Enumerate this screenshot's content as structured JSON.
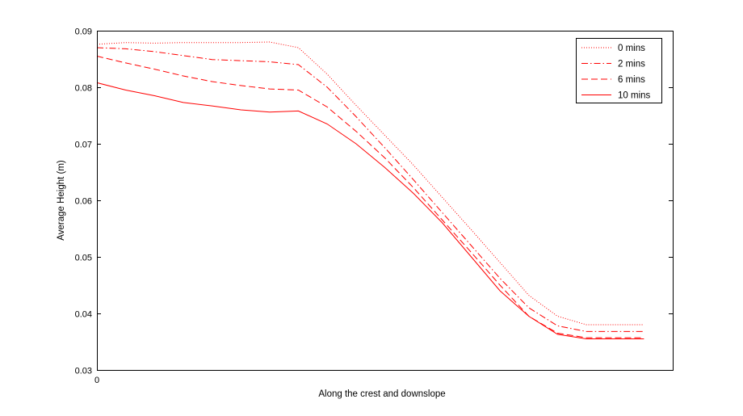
{
  "chart_data": {
    "type": "line",
    "title": "",
    "xlabel": "Along the crest and downslope",
    "ylabel": "Average Height (m)",
    "xlim": [
      0,
      1
    ],
    "ylim": [
      0.03,
      0.09
    ],
    "x_tick_labels": [
      "0"
    ],
    "y_ticks": [
      0.03,
      0.04,
      0.05,
      0.06,
      0.07,
      0.08,
      0.09
    ],
    "y_tick_labels": [
      "0.03",
      "0.04",
      "0.05",
      "0.06",
      "0.07",
      "0.08",
      "0.09"
    ],
    "grid": false,
    "legend_position": "top-right",
    "line_color": "#ff0000",
    "series": [
      {
        "name": "0 mins",
        "style": "dotted",
        "x": [
          0,
          0.05,
          0.1,
          0.15,
          0.2,
          0.25,
          0.3,
          0.35,
          0.4,
          0.45,
          0.5,
          0.55,
          0.6,
          0.65,
          0.7,
          0.75,
          0.8,
          0.85,
          0.9,
          0.95
        ],
        "y": [
          0.0876,
          0.0879,
          0.0878,
          0.0879,
          0.0879,
          0.0879,
          0.088,
          0.087,
          0.0823,
          0.0768,
          0.0715,
          0.0662,
          0.0605,
          0.0548,
          0.049,
          0.0432,
          0.0395,
          0.038,
          0.038,
          0.038
        ]
      },
      {
        "name": "2 mins",
        "style": "dashdot",
        "x": [
          0,
          0.05,
          0.1,
          0.15,
          0.2,
          0.25,
          0.3,
          0.35,
          0.4,
          0.45,
          0.5,
          0.55,
          0.6,
          0.65,
          0.7,
          0.75,
          0.8,
          0.85,
          0.9,
          0.95
        ],
        "y": [
          0.087,
          0.0868,
          0.0863,
          0.0856,
          0.0849,
          0.0847,
          0.0845,
          0.084,
          0.08,
          0.0748,
          0.0693,
          0.0636,
          0.0578,
          0.052,
          0.0462,
          0.041,
          0.0378,
          0.0368,
          0.0368,
          0.0368
        ]
      },
      {
        "name": "6 mins",
        "style": "dashed",
        "x": [
          0,
          0.05,
          0.1,
          0.15,
          0.2,
          0.25,
          0.3,
          0.35,
          0.4,
          0.45,
          0.5,
          0.55,
          0.6,
          0.65,
          0.7,
          0.75,
          0.8,
          0.85,
          0.9,
          0.95
        ],
        "y": [
          0.0855,
          0.0843,
          0.0832,
          0.082,
          0.081,
          0.0803,
          0.0797,
          0.0795,
          0.0765,
          0.0722,
          0.0675,
          0.0622,
          0.0565,
          0.0508,
          0.045,
          0.0395,
          0.0365,
          0.0357,
          0.0357,
          0.0357
        ]
      },
      {
        "name": "10 mins",
        "style": "solid",
        "x": [
          0,
          0.05,
          0.1,
          0.15,
          0.2,
          0.25,
          0.3,
          0.35,
          0.4,
          0.45,
          0.5,
          0.55,
          0.6,
          0.65,
          0.7,
          0.75,
          0.8,
          0.85,
          0.9,
          0.95
        ],
        "y": [
          0.0808,
          0.0795,
          0.0785,
          0.0773,
          0.0767,
          0.076,
          0.0756,
          0.0758,
          0.0735,
          0.07,
          0.0658,
          0.0612,
          0.056,
          0.05,
          0.044,
          0.0395,
          0.0363,
          0.0355,
          0.0355,
          0.0355
        ]
      }
    ]
  }
}
